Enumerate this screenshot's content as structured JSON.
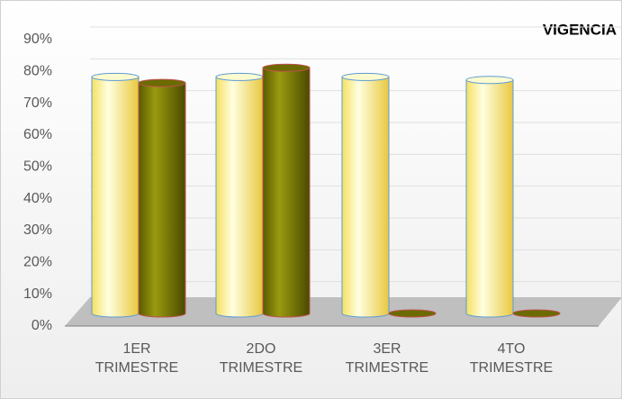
{
  "chart_data": {
    "type": "bar3d",
    "title": "VIGENCIA",
    "categories": [
      "1ER TRIMESTRE",
      "2DO TRIMESTRE",
      "3ER TRIMESTRE",
      "4TO TRIMESTRE"
    ],
    "series": [
      {
        "color": "#ffff99",
        "values": [
          78,
          78,
          78,
          77
        ]
      },
      {
        "color": "#808000",
        "values": [
          76,
          81,
          0,
          0
        ]
      }
    ],
    "ylim": [
      0,
      90
    ],
    "yticks": [
      {
        "value": 0,
        "label": "0%"
      },
      {
        "value": 10,
        "label": "10%"
      },
      {
        "value": 20,
        "label": "20%"
      },
      {
        "value": 30,
        "label": "30%"
      },
      {
        "value": 40,
        "label": "40%"
      },
      {
        "value": 50,
        "label": "50%"
      },
      {
        "value": 60,
        "label": "60%"
      },
      {
        "value": 70,
        "label": "70%"
      },
      {
        "value": 80,
        "label": "80%"
      },
      {
        "value": 90,
        "label": "90%"
      }
    ],
    "grid": true
  }
}
